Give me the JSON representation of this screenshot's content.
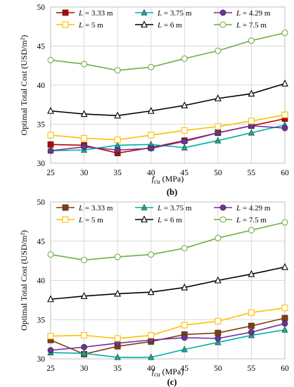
{
  "chart_data": [
    {
      "type": "line",
      "panel": "(b)",
      "ylabel": "Optimal Total Cost (USD/m²)",
      "xlabel": "fcu (MPa)",
      "xlabel_italic": "f",
      "xlabel_sub": "cu",
      "xlabel_unit": " (MPa)",
      "x": [
        25,
        30,
        35,
        40,
        45,
        50,
        55,
        60
      ],
      "xlim": [
        25,
        60
      ],
      "ylim": [
        30,
        50
      ],
      "yticks": [
        30,
        35,
        40,
        45,
        50
      ],
      "grid": true,
      "legend_position": "top",
      "series": [
        {
          "name": "L = 3.33 m",
          "var": "L",
          "val": " = 3.33 m",
          "color": "#c00000",
          "marker": "square-filled",
          "values": [
            32.4,
            32.3,
            31.3,
            32.0,
            32.9,
            33.9,
            34.8,
            35.7
          ]
        },
        {
          "name": "L = 3.75 m",
          "var": "L",
          "val": " = 3.75 m",
          "color": "#00b0a0",
          "marker": "triangle-filled",
          "values": [
            31.6,
            31.7,
            32.3,
            32.4,
            32.0,
            32.9,
            33.9,
            34.9
          ]
        },
        {
          "name": "L = 4.29 m",
          "var": "L",
          "val": " = 4.29 m",
          "color": "#7030a0",
          "marker": "circle-filled",
          "values": [
            31.6,
            32.1,
            31.7,
            31.9,
            32.8,
            33.9,
            34.8,
            34.5
          ]
        },
        {
          "name": "L = 5 m",
          "var": "L",
          "val": " = 5 m",
          "color": "#ffc000",
          "marker": "square-open",
          "values": [
            33.6,
            33.2,
            33.0,
            33.6,
            34.2,
            34.7,
            35.4,
            36.2
          ]
        },
        {
          "name": "L = 6 m",
          "var": "L",
          "val": " = 6 m",
          "color": "#000000",
          "marker": "triangle-open",
          "values": [
            36.7,
            36.3,
            36.1,
            36.7,
            37.4,
            38.3,
            38.9,
            40.2
          ]
        },
        {
          "name": "L = 7.5 m",
          "var": "L",
          "val": " = 7.5 m",
          "color": "#70ad47",
          "marker": "circle-open",
          "values": [
            43.2,
            42.7,
            41.9,
            42.3,
            43.4,
            44.4,
            45.7,
            46.7
          ]
        }
      ]
    },
    {
      "type": "line",
      "panel": "(c)",
      "ylabel": "Optimal Total Cost (USD/m²)",
      "xlabel": "fcu (MPa)",
      "xlabel_italic": "f",
      "xlabel_sub": "cu",
      "xlabel_unit": " (MPa)",
      "x": [
        25,
        30,
        35,
        40,
        45,
        50,
        55,
        60
      ],
      "xlim": [
        25,
        60
      ],
      "ylim": [
        30,
        50
      ],
      "yticks": [
        30,
        35,
        40,
        45,
        50
      ],
      "grid": true,
      "legend_position": "top",
      "series": [
        {
          "name": "L = 3.33 m",
          "var": "L",
          "val": " = 3.33 m",
          "color": "#843c0c",
          "marker": "square-filled",
          "values": [
            32.4,
            30.6,
            31.6,
            32.2,
            33.1,
            33.3,
            34.2,
            35.2
          ]
        },
        {
          "name": "L = 3.75 m",
          "var": "L",
          "val": " = 3.75 m",
          "color": "#00b0a0",
          "marker": "triangle-filled",
          "values": [
            30.8,
            30.7,
            30.2,
            30.2,
            31.2,
            32.1,
            33.0,
            33.7
          ]
        },
        {
          "name": "L = 4.29 m",
          "var": "L",
          "val": " = 4.29 m",
          "color": "#7030a0",
          "marker": "circle-filled",
          "values": [
            31.1,
            31.5,
            32.0,
            32.4,
            32.7,
            32.6,
            33.4,
            34.5
          ]
        },
        {
          "name": "L = 5 m",
          "var": "L",
          "val": " = 5 m",
          "color": "#ffc000",
          "marker": "square-open",
          "values": [
            32.9,
            33.0,
            32.6,
            33.0,
            34.3,
            34.8,
            35.9,
            36.5
          ]
        },
        {
          "name": "L = 6 m",
          "var": "L",
          "val": " = 6 m",
          "color": "#000000",
          "marker": "triangle-open",
          "values": [
            37.6,
            38.0,
            38.3,
            38.5,
            39.1,
            40.0,
            40.8,
            41.7
          ]
        },
        {
          "name": "L = 7.5 m",
          "var": "L",
          "val": " = 7.5 m",
          "color": "#70ad47",
          "marker": "circle-open",
          "values": [
            43.3,
            42.6,
            43.0,
            43.3,
            44.1,
            45.4,
            46.4,
            47.4
          ]
        }
      ]
    }
  ]
}
